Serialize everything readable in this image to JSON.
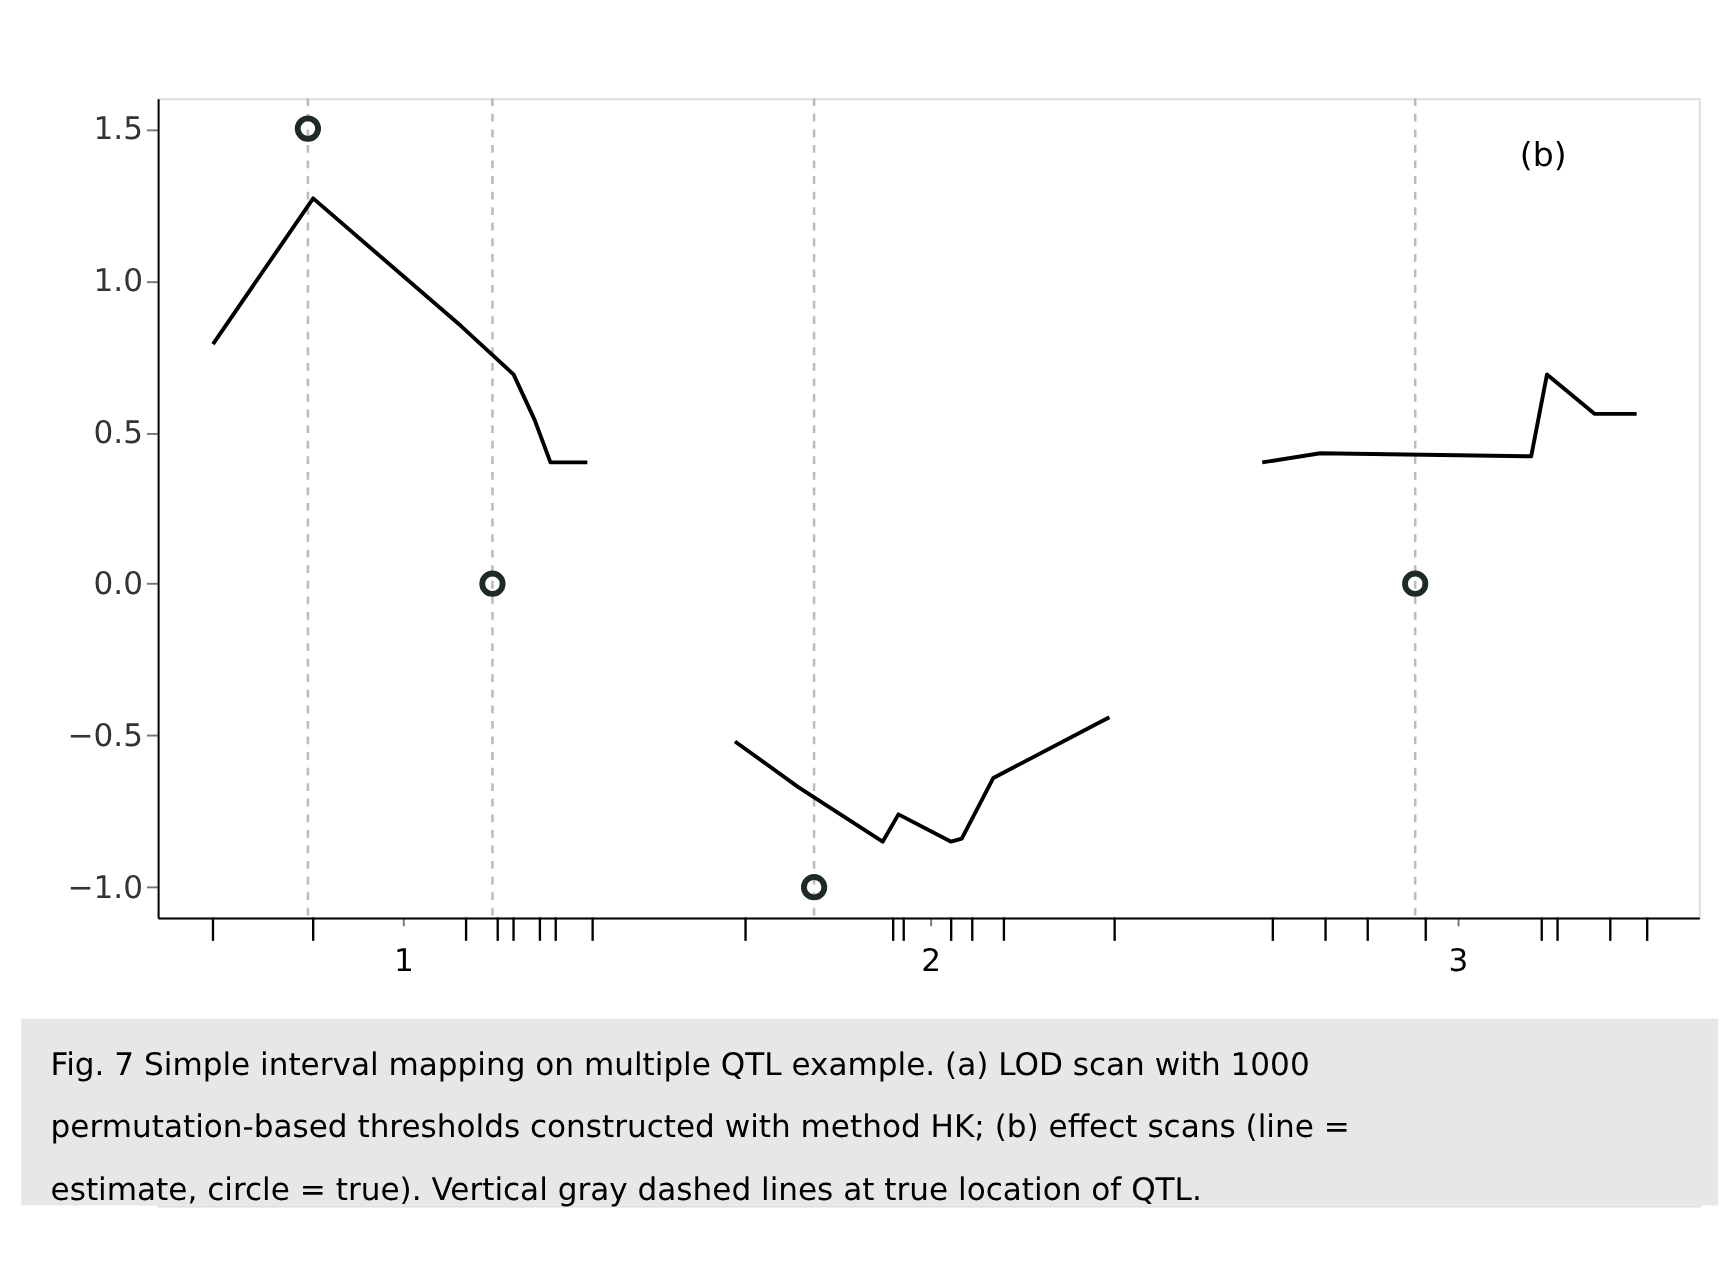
{
  "chart_data": {
    "type": "line",
    "annotations": [
      "(b)",
      "Fig. 7   Simple interval mapping on multiple QTL example. (a) LOD scan with 1000 permutation-based thresholds constructed with method HK; (b) effect scans (line = estimate, circle = true). Vertical gray dashed lines at true location of QTL."
    ],
    "xlim": [
      0.535,
      3.458
    ],
    "xticks": [
      {
        "value": 0.64,
        "label": null
      },
      {
        "value": 0.83,
        "label": null
      },
      1,
      {
        "value": 1.12,
        "label": null
      },
      {
        "value": 1.18,
        "label": null
      },
      {
        "value": 1.21,
        "label": null
      },
      {
        "value": 1.26,
        "label": null
      },
      {
        "value": 1.29,
        "label": null
      },
      {
        "value": 1.36,
        "label": null
      },
      {
        "value": 1.65,
        "label": null
      },
      {
        "value": 1.93,
        "label": null
      },
      {
        "value": 1.95,
        "label": null
      },
      2,
      {
        "value": 2.04,
        "label": null
      },
      {
        "value": 2.08,
        "label": null
      },
      {
        "value": 2.14,
        "label": null
      },
      {
        "value": 2.35,
        "label": null
      },
      {
        "value": 2.65,
        "label": null
      },
      {
        "value": 2.75,
        "label": null
      },
      {
        "value": 2.83,
        "label": null
      },
      {
        "value": 2.94,
        "label": null
      },
      3,
      {
        "value": 3.16,
        "label": null
      },
      {
        "value": 3.19,
        "label": null
      },
      {
        "value": 3.29,
        "label": null
      },
      {
        "value": 3.36,
        "label": null
      }
    ],
    "ylim": [
      -1.1,
      1.6
    ],
    "yticks": [
      {
        "value": -1.0,
        "label": "−1.0"
      },
      {
        "value": -0.5,
        "label": "−0.5"
      },
      {
        "value": 0.0,
        "label": "0.0"
      },
      {
        "value": 0.5,
        "label": "0.5"
      },
      {
        "value": 1.0,
        "label": "1.0"
      },
      {
        "value": 1.5,
        "label": "1.5"
      }
    ],
    "grid": false,
    "ref_lines": [
      {
        "axis": "x",
        "value": 0.82,
        "color": "#bbbbbb",
        "line_style": "dashed"
      },
      {
        "axis": "x",
        "value": 1.17,
        "color": "#bbbbbb",
        "line_style": "dashed"
      },
      {
        "axis": "x",
        "value": 1.78,
        "color": "#bbbbbb",
        "line_style": "dashed"
      },
      {
        "axis": "x",
        "value": 2.92,
        "color": "#bbbbbb",
        "line_style": "dashed"
      }
    ],
    "series": [
      {
        "color": "#000000",
        "line_style": "solid",
        "marker": "none",
        "x": [
          0.64,
          0.83,
          1.11,
          1.21,
          1.25,
          1.28,
          1.35,
          1.49,
          1.63,
          1.75,
          1.91,
          1.94,
          2.04,
          2.06,
          2.12,
          2.34,
          2.49,
          2.63,
          2.74,
          3.14,
          3.17,
          3.26,
          3.34
        ],
        "values": [
          0.79,
          1.27,
          0.85,
          0.69,
          0.54,
          0.4,
          0.4,
          null,
          -0.52,
          -0.67,
          -0.85,
          -0.76,
          -0.85,
          -0.84,
          -0.64,
          -0.44,
          null,
          0.4,
          0.43,
          0.42,
          0.69,
          0.56,
          0.56
        ]
      },
      {
        "type": "scatter",
        "color": "#1e2a28",
        "marker": "circle",
        "x": [
          0.82,
          1.17,
          1.78,
          2.92
        ],
        "values": [
          1.5,
          0.0,
          -1.0,
          0.0
        ]
      }
    ]
  }
}
